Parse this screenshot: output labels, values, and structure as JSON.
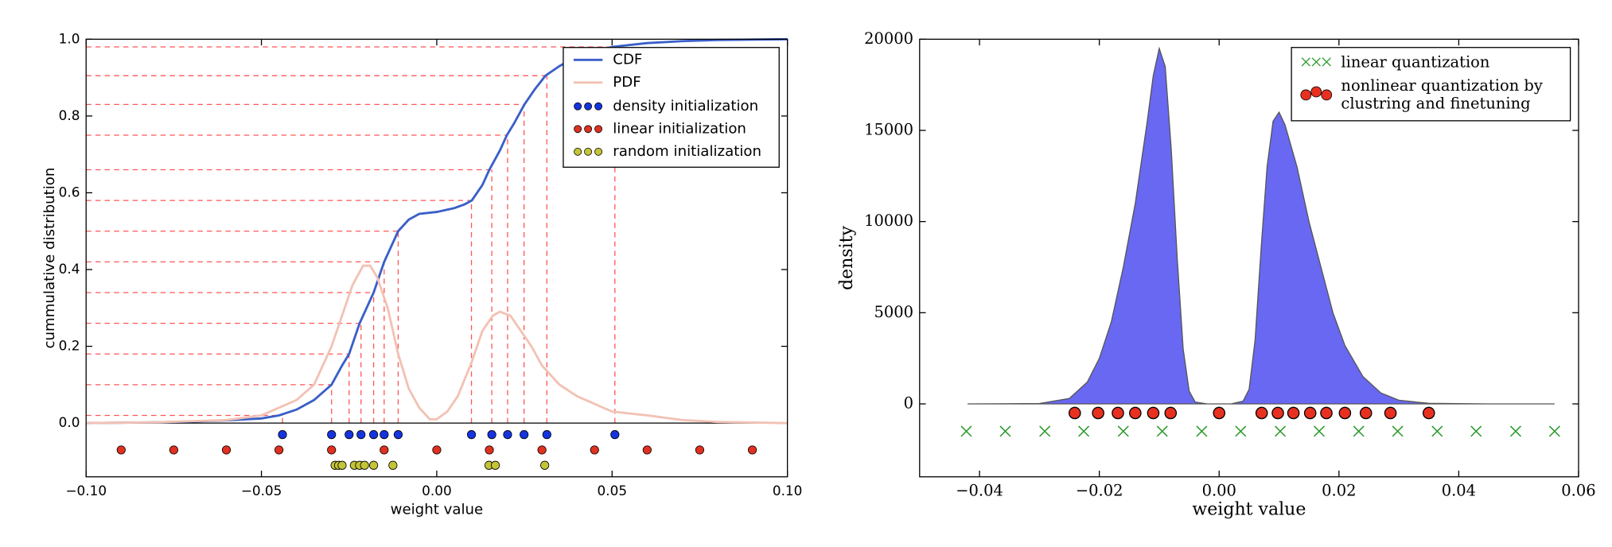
{
  "chart_data": [
    {
      "type": "line",
      "xlabel": "weight value",
      "ylabel": "cummulative distribution",
      "xlim": [
        -0.1,
        0.1
      ],
      "ylim": [
        -0.14,
        1.0
      ],
      "xticks": [
        {
          "value": -0.1,
          "label": "−0.10"
        },
        {
          "value": -0.05,
          "label": "−0.05"
        },
        {
          "value": 0,
          "label": "0.00"
        },
        {
          "value": 0.05,
          "label": "0.05"
        },
        {
          "value": 0.1,
          "label": "0.10"
        }
      ],
      "yticks": [
        {
          "value": 0,
          "label": "0.0"
        },
        {
          "value": 0.2,
          "label": "0.2"
        },
        {
          "value": 0.4,
          "label": "0.4"
        },
        {
          "value": 0.6,
          "label": "0.6"
        },
        {
          "value": 0.8,
          "label": "0.8"
        },
        {
          "value": 1,
          "label": "1.0"
        }
      ],
      "legend": "upper right",
      "guide_color": "#ff5555",
      "series": [
        {
          "name": "CDF",
          "type": "line",
          "color": "#3a5fc8",
          "x": [
            -0.1,
            -0.09,
            -0.08,
            -0.07,
            -0.06,
            -0.05,
            -0.045,
            -0.04,
            -0.035,
            -0.03,
            -0.027,
            -0.025,
            -0.022,
            -0.02,
            -0.018,
            -0.015,
            -0.013,
            -0.011,
            -0.008,
            -0.005,
            0,
            0.005,
            0.008,
            0.01,
            0.013,
            0.015,
            0.018,
            0.02,
            0.022,
            0.025,
            0.028,
            0.031,
            0.035,
            0.04,
            0.05,
            0.06,
            0.07,
            0.08,
            0.09,
            0.1
          ],
          "values": [
            0,
            0.001,
            0.002,
            0.004,
            0.007,
            0.012,
            0.02,
            0.035,
            0.06,
            0.1,
            0.15,
            0.18,
            0.26,
            0.3,
            0.34,
            0.42,
            0.46,
            0.5,
            0.53,
            0.545,
            0.55,
            0.56,
            0.57,
            0.58,
            0.62,
            0.66,
            0.71,
            0.75,
            0.78,
            0.83,
            0.87,
            0.905,
            0.93,
            0.955,
            0.98,
            0.99,
            0.995,
            0.998,
            0.999,
            1.0
          ]
        },
        {
          "name": "PDF",
          "type": "line",
          "color": "#f2c2b4",
          "x": [
            -0.1,
            -0.08,
            -0.06,
            -0.05,
            -0.04,
            -0.035,
            -0.03,
            -0.027,
            -0.024,
            -0.021,
            -0.019,
            -0.017,
            -0.014,
            -0.011,
            -0.008,
            -0.005,
            -0.002,
            0,
            0.003,
            0.006,
            0.01,
            0.013,
            0.016,
            0.018,
            0.021,
            0.024,
            0.027,
            0.03,
            0.035,
            0.04,
            0.045,
            0.05,
            0.06,
            0.07,
            0.08,
            0.1
          ],
          "values": [
            0,
            0.002,
            0.008,
            0.02,
            0.06,
            0.1,
            0.2,
            0.28,
            0.36,
            0.41,
            0.41,
            0.38,
            0.3,
            0.18,
            0.09,
            0.04,
            0.01,
            0.01,
            0.03,
            0.07,
            0.16,
            0.24,
            0.28,
            0.29,
            0.28,
            0.24,
            0.2,
            0.15,
            0.1,
            0.07,
            0.05,
            0.03,
            0.02,
            0.008,
            0.003,
            0
          ]
        },
        {
          "name": "density initialization",
          "type": "dot",
          "color": "#1434e0",
          "x": [
            -0.044,
            -0.03,
            -0.025,
            -0.0216,
            -0.018,
            -0.015,
            -0.011,
            0.0099,
            0.0157,
            0.0202,
            0.0249,
            0.0314,
            0.0508
          ],
          "values": [
            -0.03,
            -0.03,
            -0.03,
            -0.03,
            -0.03,
            -0.03,
            -0.03,
            -0.03,
            -0.03,
            -0.03,
            -0.03,
            -0.03,
            -0.03
          ],
          "levels": [
            0.02,
            0.1,
            0.18,
            0.26,
            0.34,
            0.42,
            0.5,
            0.58,
            0.66,
            0.75,
            0.83,
            0.905,
            0.98
          ]
        },
        {
          "name": "linear initialization",
          "type": "dot",
          "color": "#e03020",
          "x": [
            -0.09,
            -0.075,
            -0.06,
            -0.045,
            -0.03,
            -0.015,
            0,
            0.015,
            0.03,
            0.045,
            0.06,
            0.075,
            0.09
          ],
          "values": [
            -0.07,
            -0.07,
            -0.07,
            -0.07,
            -0.07,
            -0.07,
            -0.07,
            -0.07,
            -0.07,
            -0.07,
            -0.07,
            -0.07,
            -0.07
          ]
        },
        {
          "name": "random initialization",
          "type": "dot",
          "color": "#c4c436",
          "x": [
            -0.029,
            -0.028,
            -0.027,
            -0.0235,
            -0.022,
            -0.0206,
            -0.018,
            -0.0125,
            0.0149,
            0.0167,
            0.0308
          ],
          "values": [
            -0.11,
            -0.11,
            -0.11,
            -0.11,
            -0.11,
            -0.11,
            -0.11,
            -0.11,
            -0.11,
            -0.11,
            -0.11
          ]
        }
      ]
    },
    {
      "type": "area",
      "xlabel": "weight value",
      "ylabel": "density",
      "xlim": [
        -0.05,
        0.06
      ],
      "ylim": [
        -4000,
        20000
      ],
      "xticks": [
        {
          "value": -0.04,
          "label": "−0.04"
        },
        {
          "value": -0.02,
          "label": "−0.02"
        },
        {
          "value": 0,
          "label": "0.00"
        },
        {
          "value": 0.02,
          "label": "0.02"
        },
        {
          "value": 0.04,
          "label": "0.04"
        },
        {
          "value": 0.06,
          "label": "0.06"
        }
      ],
      "yticks": [
        0,
        5000,
        10000,
        15000,
        20000
      ],
      "legend": "upper right",
      "series": [
        {
          "type": "area",
          "color": "#6868f2",
          "x": [
            -0.042,
            -0.03,
            -0.025,
            -0.022,
            -0.02,
            -0.018,
            -0.016,
            -0.014,
            -0.012,
            -0.011,
            -0.01,
            -0.009,
            -0.008,
            -0.007,
            -0.006,
            -0.005,
            -0.004,
            -0.002,
            0.002,
            0.004,
            0.005,
            0.006,
            0.007,
            0.008,
            0.009,
            0.01,
            0.011,
            0.013,
            0.015,
            0.017,
            0.019,
            0.021,
            0.024,
            0.027,
            0.03,
            0.035,
            0.045,
            0.056
          ],
          "values": [
            0,
            20,
            300,
            1200,
            2500,
            4500,
            7500,
            11000,
            15500,
            18000,
            19500,
            18500,
            14000,
            8000,
            3000,
            700,
            100,
            0,
            0,
            150,
            800,
            3500,
            8500,
            13000,
            15500,
            16000,
            15300,
            13000,
            10000,
            7500,
            5000,
            3200,
            1500,
            600,
            200,
            30,
            0,
            0
          ]
        },
        {
          "name": "linear quantization",
          "type": "cross",
          "color": "#2a9a2a",
          "x": [
            -0.0422,
            -0.0357,
            -0.0291,
            -0.0226,
            -0.016,
            -0.0095,
            -0.0029,
            0.0036,
            0.0102,
            0.0167,
            0.0233,
            0.0298,
            0.0364,
            0.0429,
            0.0495,
            0.056
          ],
          "values": [
            -1500,
            -1500,
            -1500,
            -1500,
            -1500,
            -1500,
            -1500,
            -1500,
            -1500,
            -1500,
            -1500,
            -1500,
            -1500,
            -1500,
            -1500,
            -1500
          ]
        },
        {
          "name": "nonlinear quantization by clustring and finetuning",
          "type": "circle",
          "color": "#e83020",
          "x": [
            -0.0241,
            -0.0202,
            -0.0169,
            -0.014,
            -0.011,
            -0.0081,
            0,
            0.0071,
            0.0098,
            0.0124,
            0.0152,
            0.0179,
            0.021,
            0.0245,
            0.0286,
            0.035
          ],
          "values": [
            -500,
            -500,
            -500,
            -500,
            -500,
            -500,
            -500,
            -500,
            -500,
            -500,
            -500,
            -500,
            -500,
            -500,
            -500,
            -500
          ]
        }
      ]
    }
  ]
}
